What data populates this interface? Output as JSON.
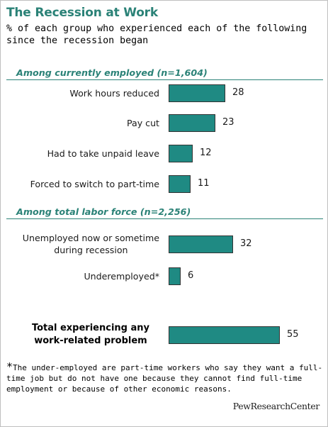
{
  "title": "The Recession  at Work",
  "subtitle": "% of each group who experienced each of the following since the recession began",
  "sections": [
    {
      "label": "Among currently employed (n=1,604)"
    },
    {
      "label": "Among total labor force (n=2,256)"
    }
  ],
  "chart_data": {
    "type": "bar",
    "orientation": "horizontal",
    "title": "The Recession  at Work",
    "subtitle": "% of each group who experienced each of the following since the recession began",
    "colors": {
      "bar": "#1f8a83",
      "accent": "#2b8277"
    },
    "categories": [
      "Work hours reduced",
      "Pay cut",
      "Had to take unpaid leave",
      "Forced to switch to part-time",
      "Unemployed now or sometime during recession",
      "Underemployed*",
      "Total experiencing any work-related problem"
    ],
    "values": [
      28,
      23,
      12,
      11,
      32,
      6,
      55
    ],
    "groups": [
      {
        "name": "Among currently employed (n=1,604)",
        "categories": [
          "Work hours reduced",
          "Pay cut",
          "Had to take unpaid leave",
          "Forced to switch to part-time"
        ]
      },
      {
        "name": "Among total labor force (n=2,256)",
        "categories": [
          "Unemployed now or sometime during recession",
          "Underemployed*"
        ]
      },
      {
        "name": "",
        "categories": [
          "Total experiencing any work-related problem"
        ]
      }
    ],
    "xlim": [
      0,
      100
    ],
    "grid": false,
    "legend": "none"
  },
  "bars": [
    {
      "lines": [
        "Work hours reduced"
      ],
      "value_text": "28"
    },
    {
      "lines": [
        "Pay cut"
      ],
      "value_text": "23"
    },
    {
      "lines": [
        "Had to take unpaid leave"
      ],
      "value_text": "12"
    },
    {
      "lines": [
        "Forced to switch to part-time"
      ],
      "value_text": "11"
    },
    {
      "lines": [
        "Unemployed now or sometime",
        "during recession"
      ],
      "value_text": "32"
    },
    {
      "lines": [
        "Underemployed*"
      ],
      "value_text": "6"
    },
    {
      "lines": [
        "Total experiencing any",
        "work-related problem"
      ],
      "value_text": "55"
    }
  ],
  "footnote": {
    "star": "*",
    "text": "The under-employed  are part-time  workers who say they want a full-time job but do not have one because they cannot find full-time employment or because of other economic reasons."
  },
  "source": "PewResearchCenter"
}
